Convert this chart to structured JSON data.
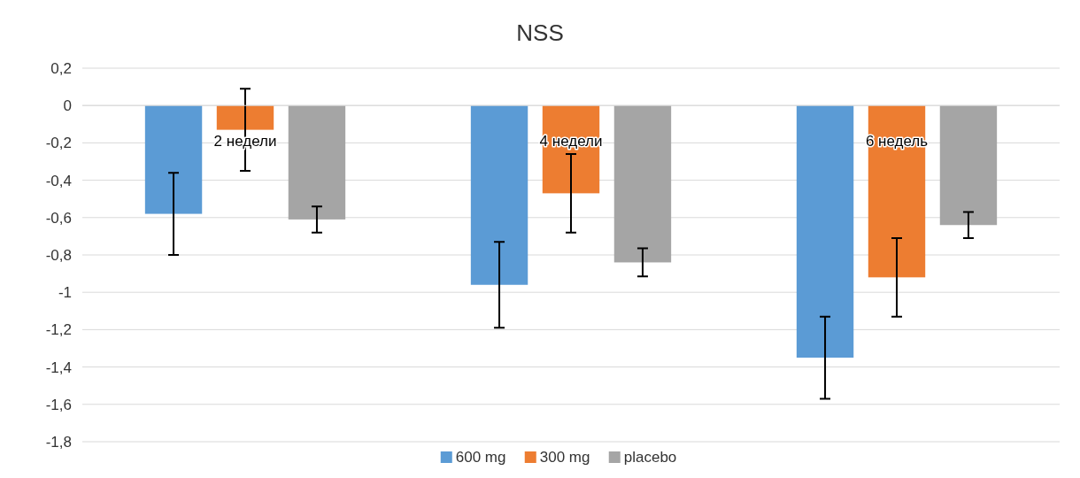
{
  "chart_data": {
    "type": "bar",
    "title": "NSS",
    "categories": [
      "2 недели",
      "4 недели",
      "6 недель"
    ],
    "series": [
      {
        "name": "600 mg",
        "color": "#5b9bd5",
        "values": [
          -0.58,
          -0.96,
          -1.35
        ],
        "errors": [
          0.22,
          0.23,
          0.22
        ]
      },
      {
        "name": "300 mg",
        "color": "#ed7d31",
        "values": [
          -0.13,
          -0.47,
          -0.92
        ],
        "errors": [
          0.22,
          0.21,
          0.21
        ]
      },
      {
        "name": "placebo",
        "color": "#a5a5a5",
        "values": [
          -0.61,
          -0.84,
          -0.64
        ],
        "errors": [
          0.07,
          0.075,
          0.07
        ]
      }
    ],
    "ylim": [
      -1.8,
      0.2
    ],
    "yticks": [
      {
        "value": 0.2,
        "label": "0,2"
      },
      0,
      {
        "value": -0.2,
        "label": "-0,2"
      },
      {
        "value": -0.4,
        "label": "-0,4"
      },
      {
        "value": -0.6,
        "label": "-0,6"
      },
      {
        "value": -0.8,
        "label": "-0,8"
      },
      -1,
      {
        "value": -1.2,
        "label": "-1,2"
      },
      {
        "value": -1.4,
        "label": "-1,4"
      },
      {
        "value": -1.6,
        "label": "-1,6"
      },
      {
        "value": -1.8,
        "label": "-1,8"
      }
    ],
    "grid": "y",
    "legend": "bottom"
  }
}
